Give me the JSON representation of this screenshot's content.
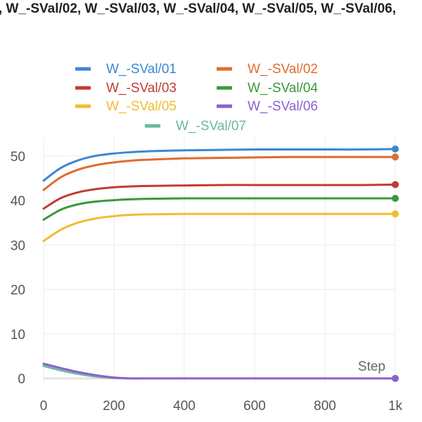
{
  "title": ", W_-SVal/02, W_-SVal/03, W_-SVal/04, W_-SVal/05, W_-SVal/06,",
  "chart_data": {
    "type": "line",
    "title": ", W_-SVal/02, W_-SVal/03, W_-SVal/04, W_-SVal/05, W_-SVal/06,",
    "xlabel": "Step",
    "ylabel": "",
    "xlim": [
      0,
      1000
    ],
    "ylim": [
      0,
      55
    ],
    "x_ticks": [
      "0",
      "200",
      "400",
      "600",
      "800",
      "1k"
    ],
    "y_ticks": [
      "0",
      "10",
      "20",
      "30",
      "40",
      "50"
    ],
    "grid": true,
    "legend_position": "top",
    "x": [
      0,
      50,
      100,
      150,
      200,
      250,
      300,
      400,
      500,
      600,
      700,
      800,
      900,
      1000
    ],
    "series": [
      {
        "name": "W_-SVal/01",
        "color": "#3b87d4",
        "values": [
          44.5,
          47.4,
          49.1,
          50.1,
          50.6,
          50.9,
          51.1,
          51.3,
          51.4,
          51.5,
          51.5,
          51.5,
          51.5,
          51.6
        ]
      },
      {
        "name": "W_-SVal/02",
        "color": "#e06c2e",
        "values": [
          42.4,
          45.3,
          47.0,
          48.0,
          48.6,
          49.0,
          49.2,
          49.5,
          49.6,
          49.7,
          49.8,
          49.8,
          49.8,
          49.8
        ]
      },
      {
        "name": "W_-SVal/03",
        "color": "#c23b32",
        "values": [
          38.2,
          40.6,
          41.9,
          42.6,
          43.0,
          43.2,
          43.3,
          43.4,
          43.5,
          43.5,
          43.5,
          43.5,
          43.5,
          43.6
        ]
      },
      {
        "name": "W_-SVal/04",
        "color": "#3a9a3a",
        "values": [
          35.7,
          38.0,
          39.2,
          39.8,
          40.1,
          40.3,
          40.4,
          40.5,
          40.5,
          40.5,
          40.5,
          40.5,
          40.5,
          40.5
        ]
      },
      {
        "name": "W_-SVal/05",
        "color": "#f0bd2e",
        "values": [
          30.9,
          33.5,
          35.1,
          36.0,
          36.5,
          36.8,
          36.9,
          37.0,
          37.0,
          37.0,
          37.0,
          37.0,
          37.0,
          37.0
        ]
      },
      {
        "name": "W_-SVal/06",
        "color": "#8e5fcf",
        "values": [
          3.3,
          2.3,
          1.4,
          0.7,
          0.2,
          0.0,
          0.0,
          0.0,
          0.0,
          0.0,
          0.0,
          0.0,
          0.0,
          0.0
        ]
      },
      {
        "name": "W_-SVal/07",
        "color": "#6ab8a0",
        "values": [
          2.8,
          1.8,
          1.0,
          0.4,
          0.1,
          0.0,
          0.0,
          0.0,
          0.0,
          0.0,
          0.0,
          0.0,
          0.0,
          0.0
        ]
      }
    ]
  }
}
